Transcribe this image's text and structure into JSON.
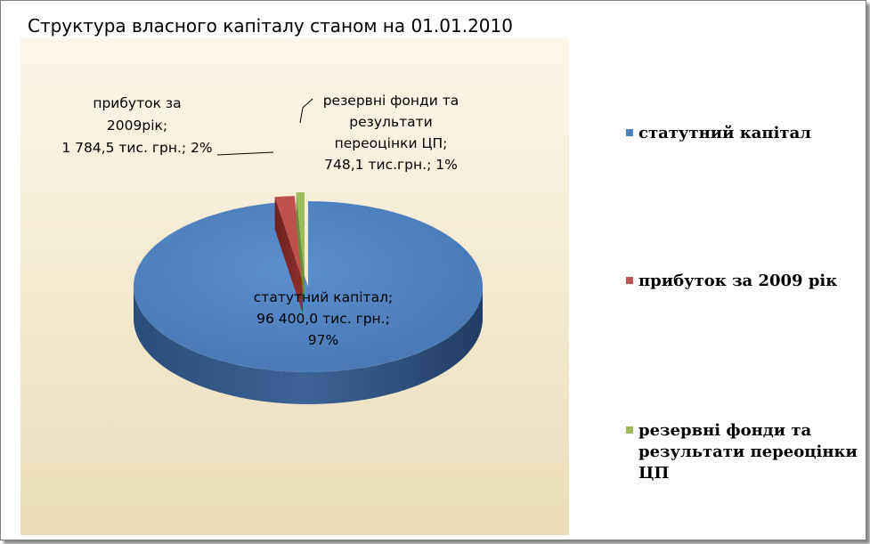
{
  "chart_data": {
    "type": "pie",
    "title": "Структура власного капіталу станом на 01.01.2010",
    "categories": [
      "статутний капітал",
      "прибуток за 2009 рік",
      "резервні фонди та результати переоцінки ЦП"
    ],
    "values": [
      96400.0,
      1784.5,
      748.1
    ],
    "percents": [
      97,
      2,
      1
    ],
    "colors": [
      "#4F81BD",
      "#C0504D",
      "#9BBB59"
    ],
    "legend_position": "right",
    "data_labels": [
      [
        "статутний капітал;",
        "96 400,0 тис. грн.;",
        "97%"
      ],
      [
        "прибуток за",
        "2009рік;",
        "1 784,5 тис. грн.; 2%"
      ],
      [
        "резервні фонди та",
        "результати",
        "переоцінки ЦП;",
        "748,1 тис.грн.; 1%"
      ]
    ],
    "legend_entries": [
      [
        "статутний капітал"
      ],
      [
        "прибуток за 2009 рік"
      ],
      [
        "резервні фонди та",
        "результати переоцінки",
        "ЦП"
      ]
    ]
  }
}
